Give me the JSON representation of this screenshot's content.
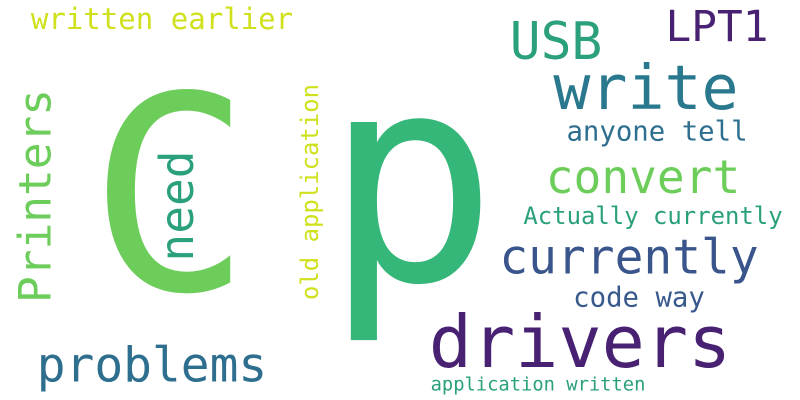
{
  "words": [
    {
      "text": "p",
      "color": "#35b779",
      "orientation": "horizontal"
    },
    {
      "text": "C",
      "color": "#6ccd5a",
      "orientation": "horizontal"
    },
    {
      "text": "drivers",
      "color": "#482173",
      "orientation": "horizontal"
    },
    {
      "text": "write",
      "color": "#2a788e",
      "orientation": "horizontal"
    },
    {
      "text": "currently",
      "color": "#39558c",
      "orientation": "horizontal"
    },
    {
      "text": "Printers",
      "color": "#6ccd5a",
      "orientation": "vertical"
    },
    {
      "text": "problems",
      "color": "#2e6e8e",
      "orientation": "horizontal"
    },
    {
      "text": "convert",
      "color": "#6ccd5a",
      "orientation": "horizontal"
    },
    {
      "text": "need",
      "color": "#2ba07d",
      "orientation": "vertical"
    },
    {
      "text": "USB",
      "color": "#2ba07d",
      "orientation": "horizontal"
    },
    {
      "text": "LPT1",
      "color": "#482173",
      "orientation": "horizontal"
    },
    {
      "text": "written earlier",
      "color": "#cfe11c",
      "orientation": "horizontal"
    },
    {
      "text": "anyone tell",
      "color": "#2e6e8e",
      "orientation": "horizontal"
    },
    {
      "text": "code way",
      "color": "#38598c",
      "orientation": "horizontal"
    },
    {
      "text": "Actually currently",
      "color": "#2ba07d",
      "orientation": "horizontal"
    },
    {
      "text": "old application",
      "color": "#cfe11c",
      "orientation": "vertical"
    },
    {
      "text": "application written",
      "color": "#2ba07d",
      "orientation": "horizontal"
    }
  ]
}
